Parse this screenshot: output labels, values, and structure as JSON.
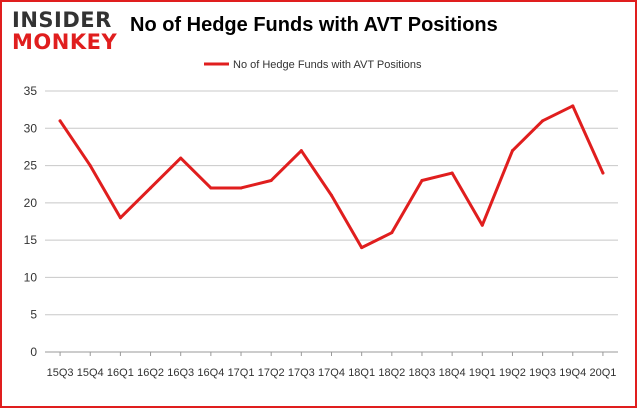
{
  "logo": {
    "line1": "INSIDER",
    "line2": "MONKEY"
  },
  "title": "No of Hedge Funds with AVT Positions",
  "colors": {
    "series": "#e01e1e",
    "grid": "#c8c8c8",
    "axis": "#999999",
    "frame": "#e01e1e"
  },
  "chart_data": {
    "type": "line",
    "title": "No of Hedge Funds with AVT Positions",
    "x": [
      "15Q3",
      "15Q4",
      "16Q1",
      "16Q2",
      "16Q3",
      "16Q4",
      "17Q1",
      "17Q2",
      "17Q3",
      "17Q4",
      "18Q1",
      "18Q2",
      "18Q3",
      "18Q4",
      "19Q1",
      "19Q2",
      "19Q3",
      "19Q4",
      "20Q1"
    ],
    "series": [
      {
        "name": "No of Hedge Funds with AVT Positions",
        "values": [
          31,
          25,
          18,
          22,
          26,
          22,
          22,
          23,
          27,
          21,
          14,
          16,
          23,
          24,
          17,
          27,
          31,
          33,
          24
        ]
      }
    ],
    "ylim": [
      0,
      35
    ],
    "yticks": [
      0,
      5,
      10,
      15,
      20,
      25,
      30,
      35
    ],
    "grid": true,
    "legend": "top-center",
    "xlabel": "",
    "ylabel": ""
  }
}
